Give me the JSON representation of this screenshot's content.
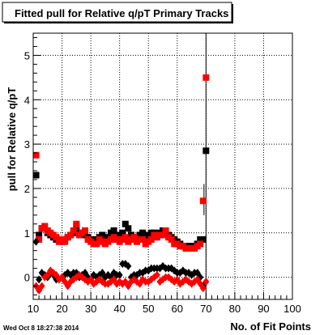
{
  "chart_data": {
    "type": "scatter",
    "title": "Fitted pull for Relative q/pT Primary Tracks",
    "xlabel": "No. of Fit Points",
    "ylabel": "pull for Relative q/pT",
    "xlim": [
      10,
      100
    ],
    "ylim": [
      -0.5,
      5.5
    ],
    "x_ticks": [
      "10",
      "20",
      "30",
      "40",
      "50",
      "60",
      "70",
      "80",
      "90",
      "100"
    ],
    "y_ticks": [
      "0",
      "1",
      "2",
      "3",
      "4",
      "5"
    ],
    "grid": true,
    "timestamp": "Wed Oct  8 18:27:38 2014",
    "series": [
      {
        "color": "#000000",
        "marker": "square",
        "points": [
          [
            11,
            2.3
          ],
          [
            12,
            0.95
          ],
          [
            13,
            1.1
          ],
          [
            14,
            1.1
          ],
          [
            15,
            1.0
          ],
          [
            16,
            0.95
          ],
          [
            17,
            0.9
          ],
          [
            18,
            0.85
          ],
          [
            19,
            0.85
          ],
          [
            20,
            0.8
          ],
          [
            21,
            0.85
          ],
          [
            22,
            0.9
          ],
          [
            23,
            0.95
          ],
          [
            24,
            1.0
          ],
          [
            25,
            1.15
          ],
          [
            26,
            1.0
          ],
          [
            27,
            0.95
          ],
          [
            28,
            1.0
          ],
          [
            29,
            0.9
          ],
          [
            30,
            0.85
          ],
          [
            31,
            0.85
          ],
          [
            32,
            0.8
          ],
          [
            33,
            0.9
          ],
          [
            34,
            0.95
          ],
          [
            35,
            0.85
          ],
          [
            36,
            0.9
          ],
          [
            37,
            1.0
          ],
          [
            38,
            1.05
          ],
          [
            39,
            0.95
          ],
          [
            40,
            0.9
          ],
          [
            41,
            1.0
          ],
          [
            42,
            1.2
          ],
          [
            43,
            1.1
          ],
          [
            44,
            0.95
          ],
          [
            45,
            0.9
          ],
          [
            46,
            0.9
          ],
          [
            47,
            0.95
          ],
          [
            48,
            1.0
          ],
          [
            49,
            0.95
          ],
          [
            50,
            0.9
          ],
          [
            51,
            1.0
          ],
          [
            52,
            1.0
          ],
          [
            53,
            0.95
          ],
          [
            54,
            1.0
          ],
          [
            55,
            1.05
          ],
          [
            56,
            1.0
          ],
          [
            57,
            0.95
          ],
          [
            58,
            0.9
          ],
          [
            59,
            0.85
          ],
          [
            60,
            0.8
          ],
          [
            61,
            0.75
          ],
          [
            62,
            0.7
          ],
          [
            63,
            0.7
          ],
          [
            64,
            0.7
          ],
          [
            65,
            0.7
          ],
          [
            66,
            0.7
          ],
          [
            67,
            0.75
          ],
          [
            68,
            0.85
          ],
          [
            69,
            0.85
          ],
          [
            70,
            2.85
          ]
        ]
      },
      {
        "color": "#ff0000",
        "marker": "square",
        "points": [
          [
            11,
            2.75
          ],
          [
            12,
            0.85
          ],
          [
            13,
            1.1
          ],
          [
            14,
            1.15
          ],
          [
            15,
            1.05
          ],
          [
            16,
            1.0
          ],
          [
            17,
            0.95
          ],
          [
            18,
            0.9
          ],
          [
            19,
            0.8
          ],
          [
            20,
            0.85
          ],
          [
            21,
            0.8
          ],
          [
            22,
            0.9
          ],
          [
            23,
            0.95
          ],
          [
            24,
            1.05
          ],
          [
            25,
            1.2
          ],
          [
            26,
            0.95
          ],
          [
            27,
            1.0
          ],
          [
            28,
            1.05
          ],
          [
            29,
            0.85
          ],
          [
            30,
            0.8
          ],
          [
            31,
            0.75
          ],
          [
            32,
            0.75
          ],
          [
            33,
            0.85
          ],
          [
            34,
            0.8
          ],
          [
            35,
            0.75
          ],
          [
            36,
            0.8
          ],
          [
            37,
            0.85
          ],
          [
            38,
            0.9
          ],
          [
            39,
            0.85
          ],
          [
            40,
            0.8
          ],
          [
            41,
            0.85
          ],
          [
            42,
            0.9
          ],
          [
            43,
            0.8
          ],
          [
            44,
            0.85
          ],
          [
            45,
            0.9
          ],
          [
            46,
            0.8
          ],
          [
            47,
            0.85
          ],
          [
            48,
            0.85
          ],
          [
            49,
            0.75
          ],
          [
            50,
            0.8
          ],
          [
            51,
            0.85
          ],
          [
            52,
            0.95
          ],
          [
            53,
            0.9
          ],
          [
            54,
            0.95
          ],
          [
            55,
            0.95
          ],
          [
            56,
            1.05
          ],
          [
            57,
            0.9
          ],
          [
            58,
            0.85
          ],
          [
            59,
            0.75
          ],
          [
            60,
            0.75
          ],
          [
            61,
            0.7
          ],
          [
            62,
            0.7
          ],
          [
            63,
            0.65
          ],
          [
            64,
            0.65
          ],
          [
            65,
            0.65
          ],
          [
            66,
            0.65
          ],
          [
            67,
            0.7
          ],
          [
            68,
            0.75
          ],
          [
            69,
            1.72
          ],
          [
            70,
            4.5
          ]
        ]
      },
      {
        "color": "#000000",
        "marker": "diamond",
        "points": [
          [
            11,
            0.8
          ],
          [
            12,
            -0.05
          ],
          [
            13,
            0.1
          ],
          [
            14,
            0.05
          ],
          [
            15,
            0.0
          ],
          [
            16,
            0.1
          ],
          [
            17,
            0.05
          ],
          [
            18,
            -0.05
          ],
          [
            19,
            -0.05
          ],
          [
            20,
            0.0
          ],
          [
            21,
            0.05
          ],
          [
            22,
            0.1
          ],
          [
            23,
            0.05
          ],
          [
            24,
            0.1
          ],
          [
            25,
            0.1
          ],
          [
            26,
            0.0
          ],
          [
            27,
            0.05
          ],
          [
            28,
            0.1
          ],
          [
            29,
            0.0
          ],
          [
            30,
            -0.05
          ],
          [
            31,
            0.05
          ],
          [
            32,
            0.0
          ],
          [
            33,
            0.05
          ],
          [
            34,
            0.1
          ],
          [
            35,
            0.0
          ],
          [
            36,
            0.05
          ],
          [
            37,
            0.0
          ],
          [
            38,
            0.1
          ],
          [
            39,
            0.05
          ],
          [
            40,
            0.05
          ],
          [
            41,
            0.3
          ],
          [
            42,
            0.3
          ],
          [
            43,
            0.25
          ],
          [
            44,
            0.0
          ],
          [
            45,
            0.05
          ],
          [
            46,
            0.05
          ],
          [
            47,
            0.1
          ],
          [
            48,
            0.1
          ],
          [
            49,
            0.15
          ],
          [
            50,
            0.15
          ],
          [
            51,
            0.2
          ],
          [
            52,
            0.2
          ],
          [
            53,
            0.2
          ],
          [
            54,
            0.2
          ],
          [
            55,
            0.25
          ],
          [
            56,
            0.2
          ],
          [
            57,
            0.2
          ],
          [
            58,
            0.2
          ],
          [
            59,
            0.15
          ],
          [
            60,
            0.1
          ],
          [
            61,
            0.1
          ],
          [
            62,
            0.15
          ],
          [
            63,
            0.1
          ],
          [
            64,
            0.1
          ],
          [
            65,
            0.05
          ],
          [
            66,
            0.1
          ],
          [
            67,
            0.1
          ],
          [
            68,
            0.0
          ],
          [
            69,
            -0.2
          ],
          [
            70,
            -0.1
          ]
        ]
      },
      {
        "color": "#ff0000",
        "marker": "diamond",
        "points": [
          [
            11,
            -0.2
          ],
          [
            12,
            -0.3
          ],
          [
            13,
            -0.2
          ],
          [
            14,
            0.0
          ],
          [
            15,
            0.05
          ],
          [
            16,
            0.15
          ],
          [
            17,
            0.1
          ],
          [
            18,
            0.05
          ],
          [
            19,
            -0.05
          ],
          [
            20,
            0.0
          ],
          [
            21,
            -0.1
          ],
          [
            22,
            -0.2
          ],
          [
            23,
            -0.1
          ],
          [
            24,
            -0.05
          ],
          [
            25,
            0.0
          ],
          [
            26,
            0.05
          ],
          [
            27,
            0.0
          ],
          [
            28,
            -0.05
          ],
          [
            29,
            -0.1
          ],
          [
            30,
            -0.05
          ],
          [
            31,
            -0.15
          ],
          [
            32,
            -0.1
          ],
          [
            33,
            -0.05
          ],
          [
            34,
            -0.1
          ],
          [
            35,
            -0.15
          ],
          [
            36,
            -0.15
          ],
          [
            37,
            -0.1
          ],
          [
            38,
            -0.05
          ],
          [
            39,
            -0.15
          ],
          [
            40,
            -0.1
          ],
          [
            41,
            -0.15
          ],
          [
            42,
            -0.1
          ],
          [
            43,
            -0.2
          ],
          [
            44,
            -0.1
          ],
          [
            45,
            -0.05
          ],
          [
            46,
            -0.1
          ],
          [
            47,
            -0.15
          ],
          [
            48,
            -0.05
          ],
          [
            49,
            -0.1
          ],
          [
            50,
            -0.1
          ],
          [
            51,
            -0.05
          ],
          [
            52,
            0.0
          ],
          [
            53,
            0.05
          ],
          [
            54,
            -0.1
          ],
          [
            55,
            -0.05
          ],
          [
            56,
            0.0
          ],
          [
            57,
            0.0
          ],
          [
            58,
            -0.05
          ],
          [
            59,
            -0.1
          ],
          [
            60,
            -0.05
          ],
          [
            61,
            -0.15
          ],
          [
            62,
            -0.1
          ],
          [
            63,
            -0.05
          ],
          [
            64,
            -0.1
          ],
          [
            65,
            -0.15
          ],
          [
            66,
            -0.1
          ],
          [
            67,
            -0.05
          ],
          [
            68,
            -0.15
          ],
          [
            69,
            -0.25
          ],
          [
            70,
            -0.1
          ]
        ]
      }
    ],
    "error_bars": [
      {
        "x": 70,
        "low": -0.5,
        "high": 5.5
      },
      {
        "x": 69.3,
        "low": 1.4,
        "high": 2.1
      }
    ]
  }
}
